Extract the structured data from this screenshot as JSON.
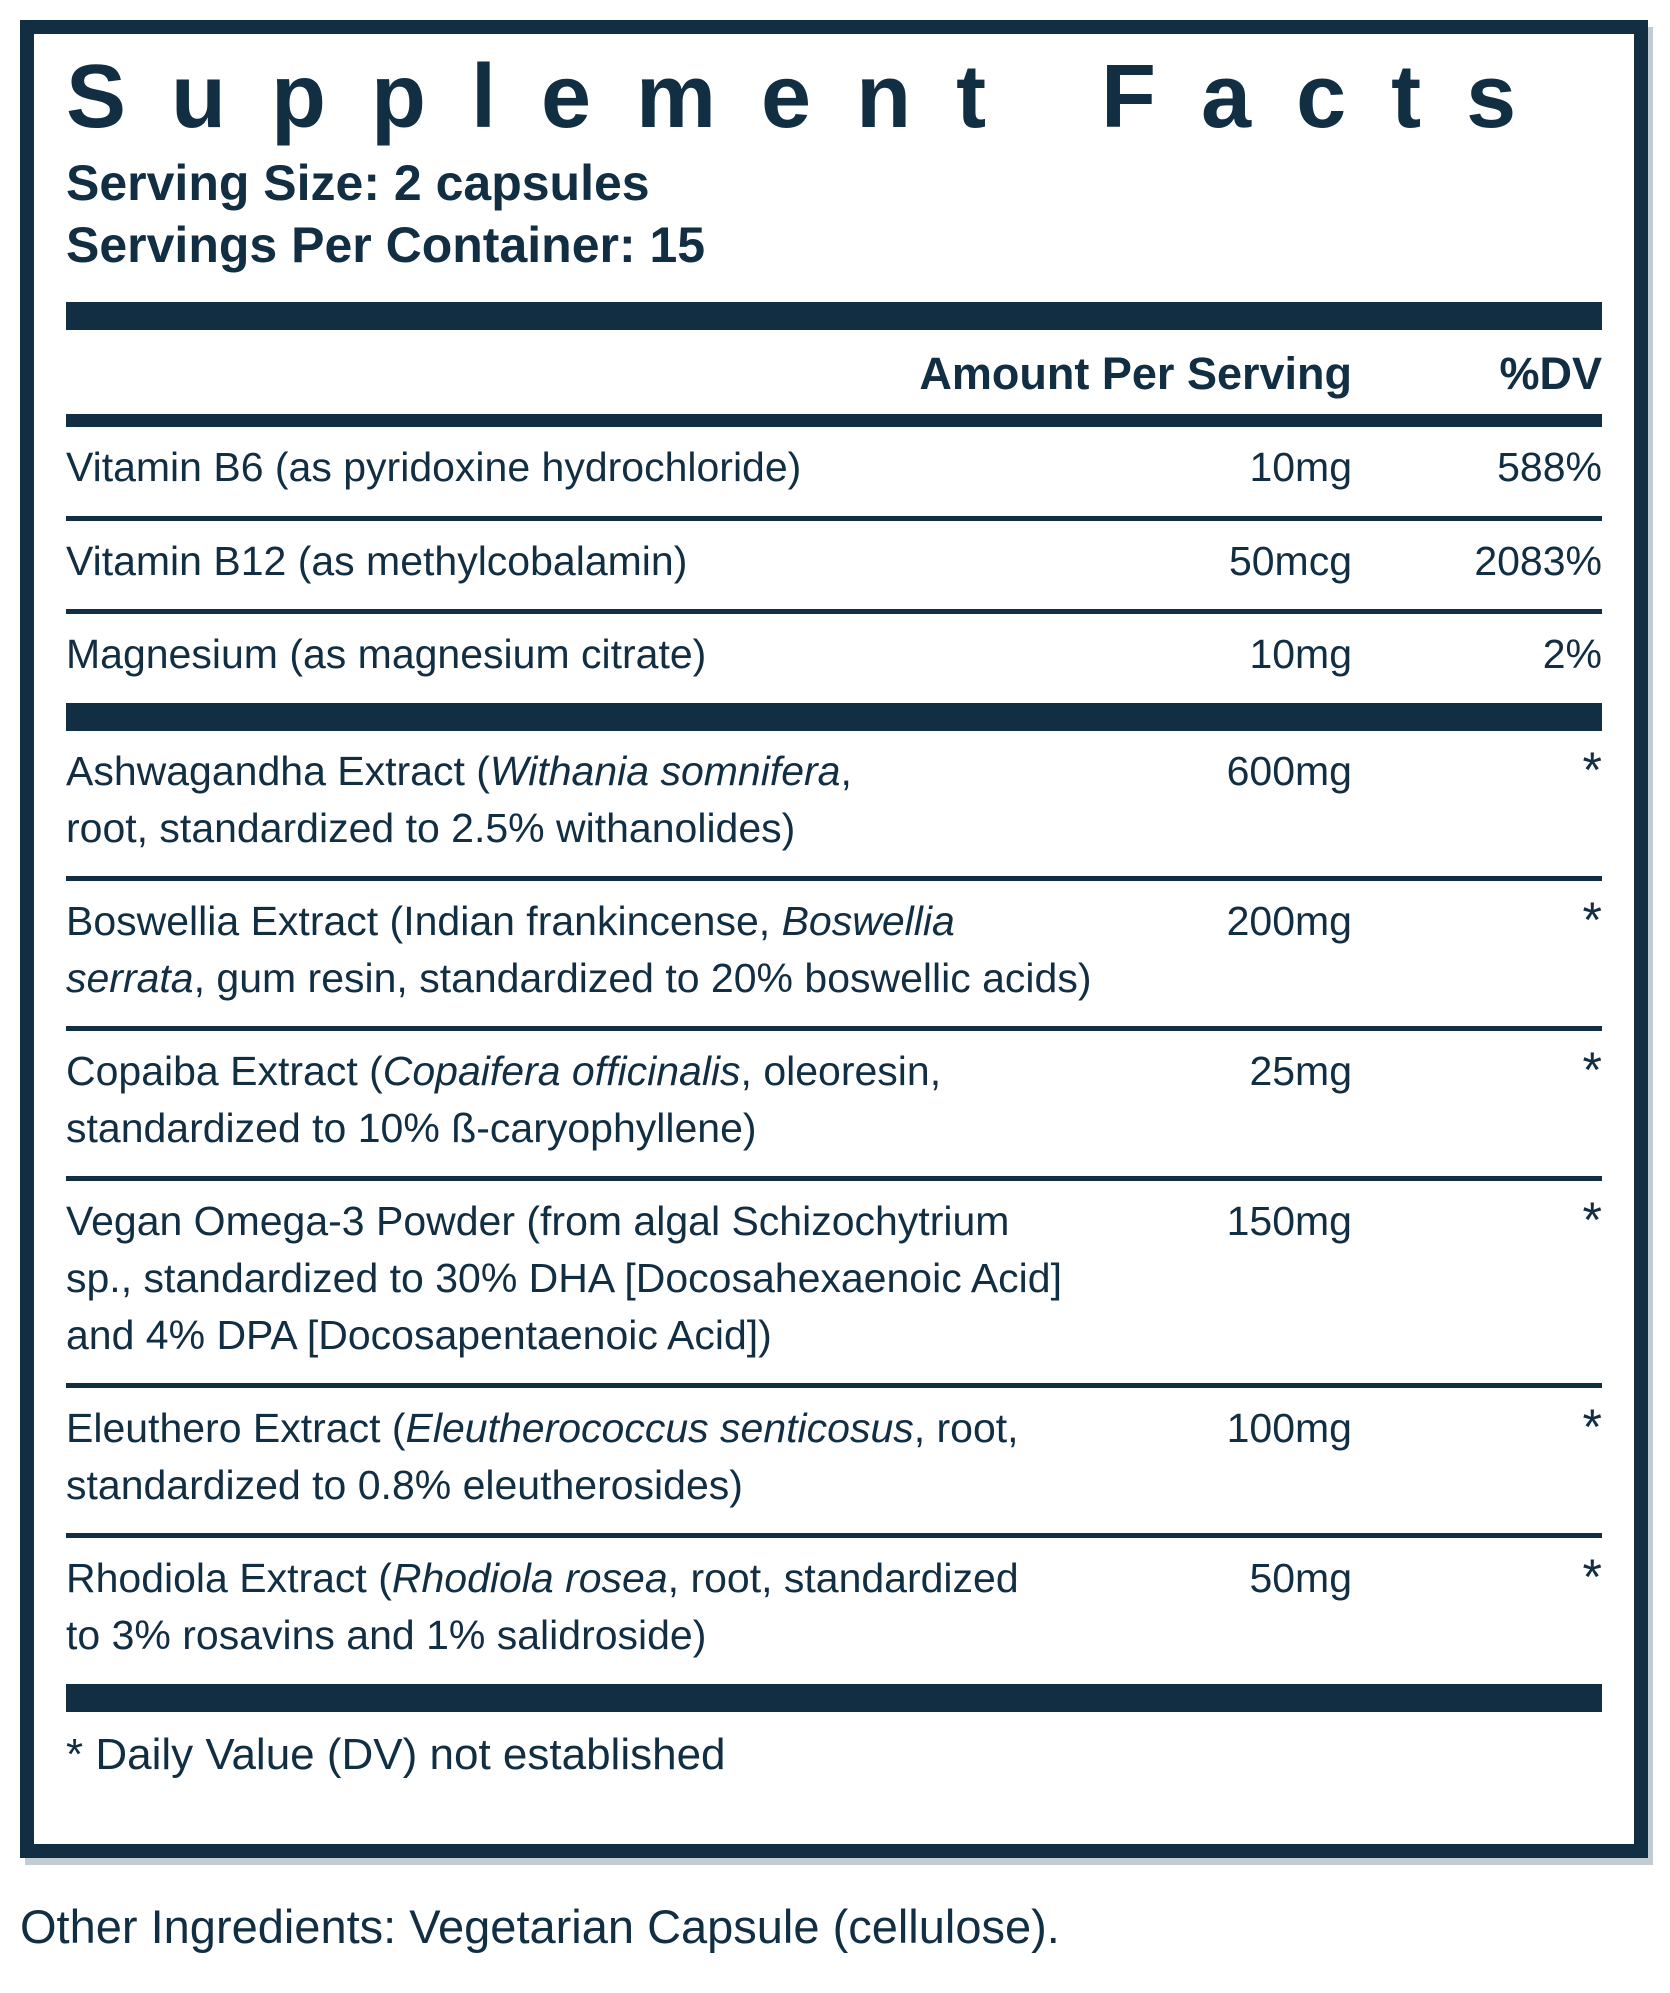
{
  "colors": {
    "ink": "#112e43",
    "paper": "#ffffff"
  },
  "header": {
    "title": "Supplement Facts",
    "serving_size": "Serving Size: 2 capsules",
    "servings_per_container": "Servings Per Container: 15"
  },
  "table": {
    "columns": {
      "amount_header": "Amount Per Serving",
      "dv_header": "%DV"
    },
    "rows": [
      {
        "type": "row",
        "lines": [
          [
            {
              "t": "Vitamin B6 (as pyridoxine hydrochloride)"
            }
          ]
        ],
        "amount": "10mg",
        "dv": "588%"
      },
      {
        "type": "row",
        "lines": [
          [
            {
              "t": "Vitamin B12 (as methylcobalamin)"
            }
          ]
        ],
        "amount": "50mcg",
        "dv": "2083%"
      },
      {
        "type": "row",
        "lines": [
          [
            {
              "t": "Magnesium (as magnesium citrate)"
            }
          ]
        ],
        "amount": "10mg",
        "dv": "2%"
      },
      {
        "type": "divider"
      },
      {
        "type": "row",
        "lines": [
          [
            {
              "t": "Ashwagandha Extract ("
            },
            {
              "t": "Withania somnifera",
              "i": true
            },
            {
              "t": ","
            }
          ],
          [
            {
              "t": "root, standardized to 2.5% withanolides)"
            }
          ]
        ],
        "amount": "600mg",
        "dv": "*"
      },
      {
        "type": "row",
        "lines": [
          [
            {
              "t": "Boswellia Extract (Indian frankincense, "
            },
            {
              "t": "Boswellia",
              "i": true
            }
          ],
          [
            {
              "t": "serrata",
              "i": true
            },
            {
              "t": ", gum resin, standardized to 20% boswellic acids)"
            }
          ]
        ],
        "amount": "200mg",
        "dv": "*"
      },
      {
        "type": "row",
        "lines": [
          [
            {
              "t": "Copaiba Extract ("
            },
            {
              "t": "Copaifera officinalis",
              "i": true
            },
            {
              "t": ", oleoresin,"
            }
          ],
          [
            {
              "t": "standardized to 10% ß-caryophyllene)"
            }
          ]
        ],
        "amount": "25mg",
        "dv": "*"
      },
      {
        "type": "row",
        "lines": [
          [
            {
              "t": "Vegan Omega-3 Powder (from algal Schizochytrium"
            }
          ],
          [
            {
              "t": "sp., standardized to 30% DHA [Docosahexaenoic Acid]"
            }
          ],
          [
            {
              "t": "and 4% DPA [Docosapentaenoic Acid])"
            }
          ]
        ],
        "amount": "150mg",
        "dv": "*"
      },
      {
        "type": "row",
        "lines": [
          [
            {
              "t": "Eleuthero Extract ("
            },
            {
              "t": "Eleutherococcus senticosus",
              "i": true
            },
            {
              "t": ", root,"
            }
          ],
          [
            {
              "t": "standardized to 0.8% eleutherosides)"
            }
          ]
        ],
        "amount": "100mg",
        "dv": "*"
      },
      {
        "type": "row",
        "lines": [
          [
            {
              "t": "Rhodiola Extract ("
            },
            {
              "t": "Rhodiola rosea",
              "i": true
            },
            {
              "t": ", root, standardized"
            }
          ],
          [
            {
              "t": "to 3% rosavins and 1% salidroside)"
            }
          ]
        ],
        "amount": "50mg",
        "dv": "*"
      },
      {
        "type": "divider"
      }
    ],
    "footnote": "* Daily Value (DV) not established"
  },
  "footer": {
    "other_ingredients": "Other Ingredients: Vegetarian Capsule (cellulose)."
  }
}
